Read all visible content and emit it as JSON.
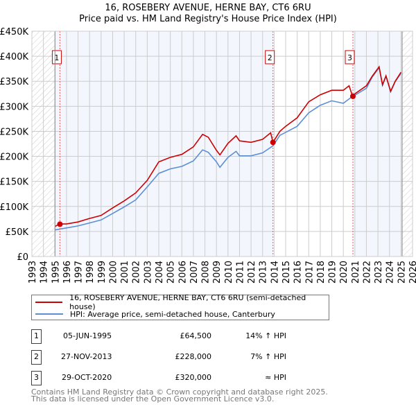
{
  "title": "16, ROSEBERY AVENUE, HERNE BAY, CT6 6RU",
  "subtitle": "Price paid vs. HM Land Registry's House Price Index (HPI)",
  "chart_data": {
    "type": "line",
    "xlim": [
      1993,
      2026
    ],
    "ylim": [
      0,
      450000
    ],
    "y_ticks": [
      {
        "v": 0,
        "l": "£0"
      },
      {
        "v": 50000,
        "l": "£50K"
      },
      {
        "v": 100000,
        "l": "£100K"
      },
      {
        "v": 150000,
        "l": "£150K"
      },
      {
        "v": 200000,
        "l": "£200K"
      },
      {
        "v": 250000,
        "l": "£250K"
      },
      {
        "v": 300000,
        "l": "£300K"
      },
      {
        "v": 350000,
        "l": "£350K"
      },
      {
        "v": 400000,
        "l": "£400K"
      },
      {
        "v": 450000,
        "l": "£450K"
      }
    ],
    "x_ticks": [
      "1993",
      "1994",
      "1995",
      "1996",
      "1997",
      "1998",
      "1999",
      "2000",
      "2001",
      "2002",
      "2003",
      "2004",
      "2005",
      "2006",
      "2007",
      "2008",
      "2009",
      "2010",
      "2011",
      "2012",
      "2013",
      "2014",
      "2015",
      "2016",
      "2017",
      "2018",
      "2019",
      "2020",
      "2021",
      "2022",
      "2023",
      "2024",
      "2025",
      "2026"
    ],
    "data_start": 1995.0,
    "data_end": 2025.1,
    "series": [
      {
        "name": "16, ROSEBERY AVENUE, HERNE BAY, CT6 6RU (semi-detached house)",
        "color": "#cc0000",
        "x": [
          1995.0,
          1995.4,
          1996,
          1997,
          1998,
          1999,
          2000,
          2001,
          2002,
          2003,
          2004,
          2005,
          2006,
          2007,
          2007.8,
          2008.3,
          2009,
          2009.3,
          2010,
          2010.7,
          2011,
          2012,
          2013,
          2013.7,
          2013.9,
          2014.5,
          2015,
          2016,
          2017,
          2018,
          2019,
          2020,
          2020.5,
          2020.8,
          2021,
          2022,
          2022.5,
          2023.1,
          2023.4,
          2023.7,
          2024.1,
          2024.5,
          2025.0
        ],
        "y": [
          60000,
          65000,
          65000,
          69000,
          76000,
          82000,
          97000,
          111000,
          127000,
          152000,
          189000,
          198000,
          204000,
          219000,
          244000,
          238000,
          212000,
          203000,
          226000,
          241000,
          231000,
          228000,
          234000,
          247000,
          228000,
          250000,
          260000,
          277000,
          309000,
          323000,
          332000,
          332000,
          341000,
          320000,
          325000,
          341000,
          360000,
          379000,
          343000,
          361000,
          330000,
          350000,
          368000
        ]
      },
      {
        "name": "HPI: Average price, semi-detached house, Canterbury",
        "color": "#5b8fd4",
        "x": [
          1995.0,
          1996,
          1997,
          1998,
          1999,
          2000,
          2001,
          2002,
          2003,
          2004,
          2005,
          2006,
          2007,
          2007.8,
          2008.3,
          2009,
          2009.3,
          2010,
          2010.7,
          2011,
          2012,
          2013,
          2013.9,
          2014.5,
          2015,
          2016,
          2017,
          2018,
          2019,
          2020,
          2020.8,
          2021,
          2022,
          2022.5,
          2023.1,
          2023.4,
          2023.7,
          2024.1,
          2024.5,
          2025.0
        ],
        "y": [
          53000,
          57000,
          61000,
          67000,
          73000,
          86000,
          99000,
          113000,
          139000,
          166000,
          175000,
          180000,
          191000,
          213000,
          208000,
          189000,
          178000,
          198000,
          210000,
          201000,
          201000,
          207000,
          221000,
          242000,
          248000,
          260000,
          287000,
          302000,
          311000,
          306000,
          320000,
          322000,
          336000,
          358000,
          377000,
          342000,
          360000,
          329000,
          349000,
          366000
        ]
      }
    ],
    "sales": [
      {
        "n": "1",
        "x": 1995.43,
        "y": 64500
      },
      {
        "n": "2",
        "x": 2013.9,
        "y": 228000
      },
      {
        "n": "3",
        "x": 2020.83,
        "y": 320000
      }
    ]
  },
  "legend": {
    "red": "16, ROSEBERY AVENUE, HERNE BAY, CT6 6RU (semi-detached house)",
    "blue": "HPI: Average price, semi-detached house, Canterbury"
  },
  "transactions": [
    {
      "n": "1",
      "date": "05-JUN-1995",
      "price": "£64,500",
      "hpi": "14% ↑ HPI"
    },
    {
      "n": "2",
      "date": "27-NOV-2013",
      "price": "£228,000",
      "hpi": "7% ↑ HPI"
    },
    {
      "n": "3",
      "date": "29-OCT-2020",
      "price": "£320,000",
      "hpi": "≈ HPI"
    }
  ],
  "footer": [
    "Contains HM Land Registry data © Crown copyright and database right 2025.",
    "This data is licensed under the Open Government Licence v3.0."
  ]
}
